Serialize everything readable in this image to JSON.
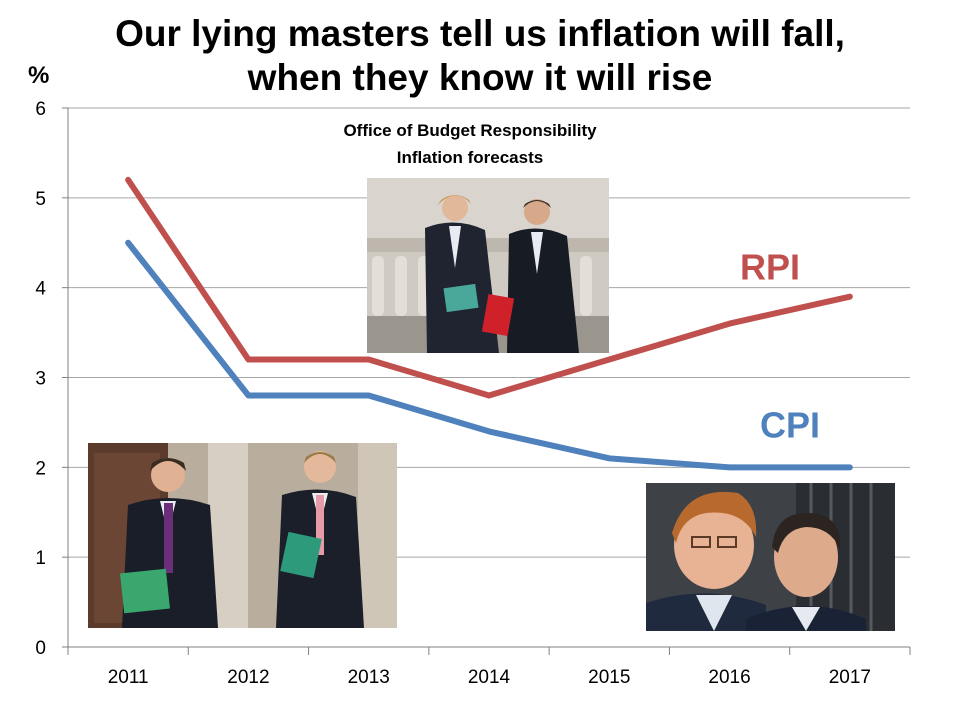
{
  "title_lines": [
    "Our lying masters tell us inflation will fall,",
    "when they know it will rise"
  ],
  "y_unit": "%",
  "subtitle_lines": [
    "Office of Budget Responsibility",
    "Inflation forecasts"
  ],
  "colors": {
    "rpi": "#c0504d",
    "cpi": "#4f81bd",
    "grid": "#a6a6a6",
    "axis": "#808080"
  },
  "chart_data": {
    "type": "line",
    "title": "Our lying masters tell us inflation will fall, when they know it will rise",
    "subtitle": "Office of Budget Responsibility Inflation forecasts",
    "x": [
      "2011",
      "2012",
      "2013",
      "2014",
      "2015",
      "2016",
      "2017"
    ],
    "ylabel": "%",
    "ylim": [
      0,
      6
    ],
    "yticks": [
      0,
      1,
      2,
      3,
      4,
      5,
      6
    ],
    "grid": true,
    "series": [
      {
        "name": "RPI",
        "color": "#c0504d",
        "values": [
          5.2,
          3.2,
          3.2,
          2.8,
          3.2,
          3.6,
          3.9
        ]
      },
      {
        "name": "CPI",
        "color": "#4f81bd",
        "values": [
          4.5,
          2.8,
          2.8,
          2.4,
          2.1,
          2.0,
          2.0
        ]
      }
    ]
  }
}
